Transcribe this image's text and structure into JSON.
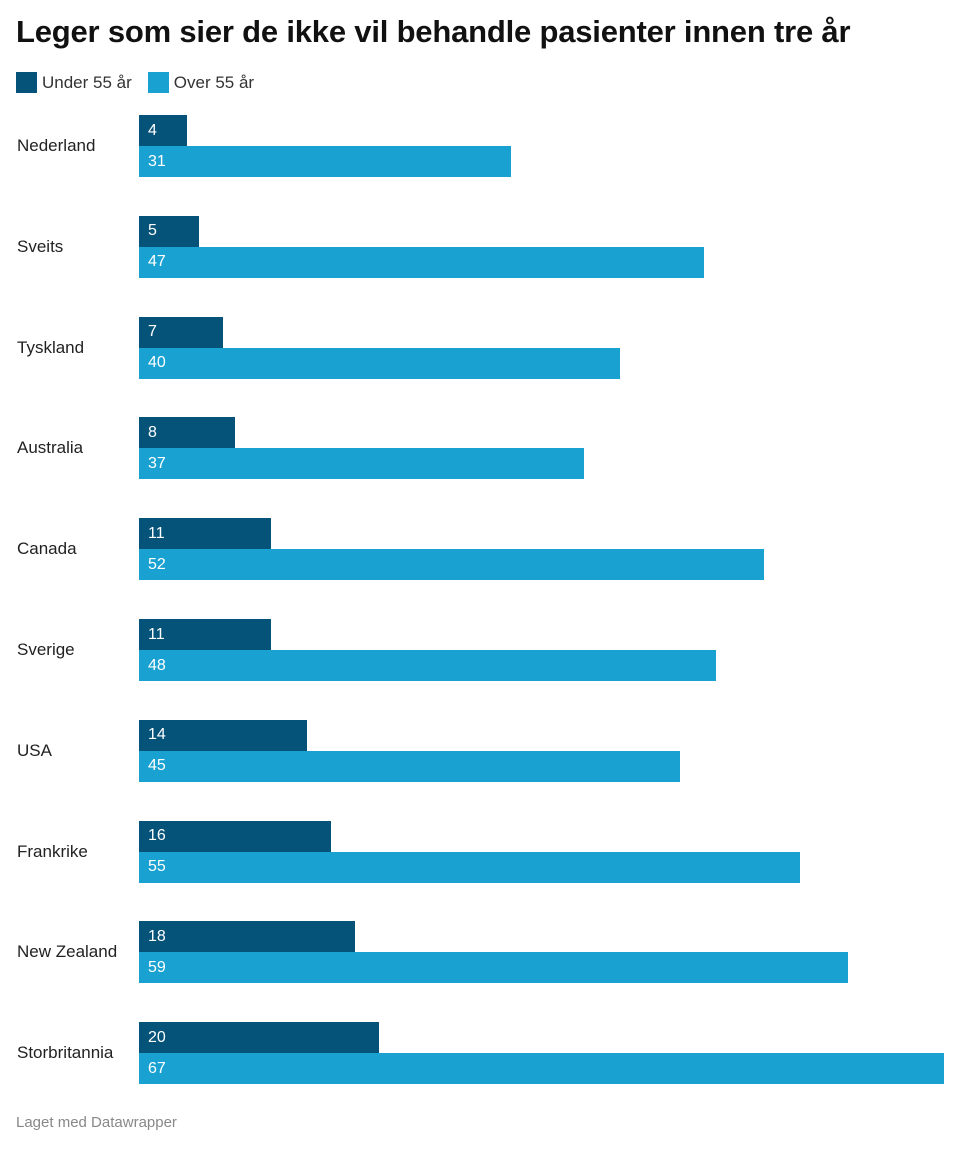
{
  "title": "Leger som sier de ikke vil behandle pasienter innen tre år",
  "legend": [
    {
      "label": "Under 55 år",
      "color": "#06537a"
    },
    {
      "label": "Over 55 år",
      "color": "#19a1d1"
    }
  ],
  "footer": "Laget med Datawrapper",
  "chart_data": {
    "type": "bar",
    "orientation": "horizontal",
    "title": "Leger som sier de ikke vil behandle pasienter innen tre år",
    "categories": [
      "Nederland",
      "Sveits",
      "Tyskland",
      "Australia",
      "Canada",
      "Sverige",
      "USA",
      "Frankrike",
      "New Zealand",
      "Storbritannia"
    ],
    "series": [
      {
        "name": "Under 55 år",
        "color": "#06537a",
        "values": [
          4,
          5,
          7,
          8,
          11,
          11,
          14,
          16,
          18,
          20
        ]
      },
      {
        "name": "Over 55 år",
        "color": "#19a1d1",
        "values": [
          31,
          47,
          40,
          37,
          52,
          48,
          45,
          55,
          59,
          67
        ]
      }
    ],
    "xlim": [
      0,
      67
    ],
    "grid": false,
    "legend_position": "top-left",
    "data_labels": true
  }
}
